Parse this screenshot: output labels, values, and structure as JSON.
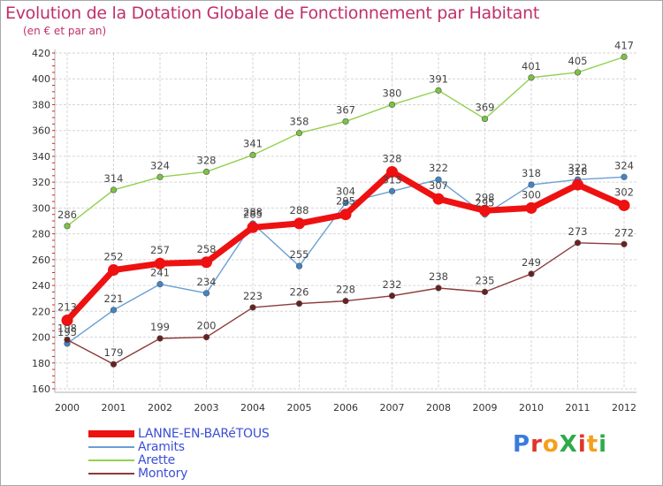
{
  "title": "Evolution de la Dotation Globale de Fonctionnement par Habitant",
  "subtitle": "(en € et par an)",
  "logo": {
    "text": "ProXiti",
    "colors": [
      "#3a7be0",
      "#e0352b",
      "#f5a01a",
      "#2faa4a",
      "#e0352b",
      "#f5a01a",
      "#2faa4a"
    ]
  },
  "chart_data": {
    "type": "line",
    "title": "Evolution de la Dotation Globale de Fonctionnement par Habitant",
    "subtitle": "(en € et par an)",
    "xlabel": "",
    "ylabel": "",
    "x": [
      "2000",
      "2001",
      "2002",
      "2003",
      "2004",
      "2005",
      "2006",
      "2007",
      "2008",
      "2009",
      "2010",
      "2011",
      "2012"
    ],
    "ylim": [
      160,
      420
    ],
    "yticks": [
      160,
      180,
      200,
      220,
      240,
      260,
      280,
      300,
      320,
      340,
      360,
      380,
      400,
      420
    ],
    "grid": true,
    "legend_position": "bottom-left",
    "series": [
      {
        "name": "Arette",
        "color": "#92d050",
        "marker": "#7cc242",
        "values": [
          286,
          314,
          324,
          328,
          341,
          358,
          367,
          380,
          391,
          369,
          401,
          405,
          417
        ],
        "labels": [
          "286",
          "314",
          "324",
          "328",
          "341",
          "358",
          "367",
          "380",
          "391",
          "369",
          "401",
          "405",
          "417"
        ]
      },
      {
        "name": "Aramits",
        "color": "#6a9fd4",
        "marker": "#3f86c8",
        "values": [
          195,
          221,
          241,
          234,
          288,
          255,
          304,
          313,
          322,
          295,
          318,
          322,
          324
        ],
        "labels": [
          "195",
          "221",
          "241",
          "234",
          "288",
          "255",
          "304",
          "313",
          "322",
          "295",
          "318",
          "322",
          "324"
        ]
      },
      {
        "name": "Montory",
        "color": "#8c3b3b",
        "marker": "#6b1f1f",
        "values": [
          198,
          179,
          199,
          200,
          223,
          226,
          228,
          232,
          238,
          235,
          249,
          273,
          272
        ],
        "labels": [
          "198",
          "179",
          "199",
          "200",
          "223",
          "226",
          "228",
          "232",
          "238",
          "235",
          "249",
          "273",
          "272"
        ]
      },
      {
        "name": "LANNE-EN-BARéTOUS",
        "color": "#ee1111",
        "marker": "#ee1111",
        "values": [
          213,
          252,
          257,
          258,
          285,
          288,
          295,
          328,
          307,
          298,
          300,
          318,
          302
        ],
        "labels": [
          "213",
          "252",
          "257",
          "258",
          "285",
          "288",
          "295",
          "328",
          "307",
          "298",
          "300",
          "318",
          "302"
        ]
      }
    ],
    "legend": [
      {
        "name": "LANNE-EN-BARéTOUS",
        "color": "#ee1111"
      },
      {
        "name": "Aramits",
        "color": "#6a9fd4"
      },
      {
        "name": "Arette",
        "color": "#92d050"
      },
      {
        "name": "Montory",
        "color": "#8c3b3b"
      }
    ]
  }
}
